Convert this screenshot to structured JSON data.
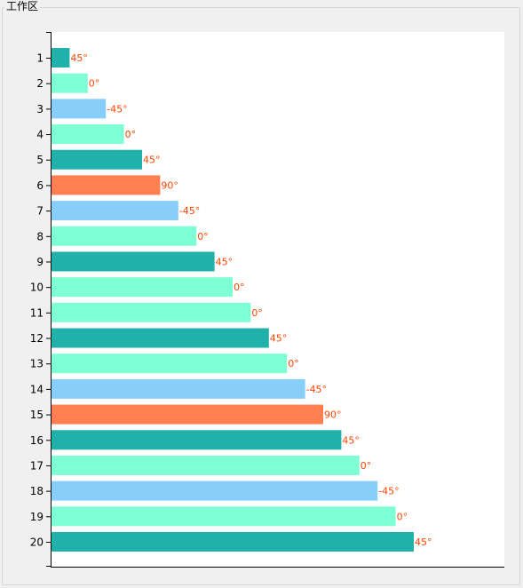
{
  "window": {
    "group_title": "工作区"
  },
  "colors": {
    "45": "#20b2aa",
    "0": "#7fffd4",
    "-45": "#87cefa",
    "90": "#ff7f50",
    "label": "#ff4500"
  },
  "chart_data": {
    "type": "bar",
    "orientation": "horizontal",
    "title": "",
    "xlabel": "",
    "ylabel": "",
    "categories": [
      "1",
      "2",
      "3",
      "4",
      "5",
      "6",
      "7",
      "8",
      "9",
      "10",
      "11",
      "12",
      "13",
      "14",
      "15",
      "16",
      "17",
      "18",
      "19",
      "20"
    ],
    "values": [
      1,
      2,
      3,
      4,
      5,
      6,
      7,
      8,
      9,
      10,
      11,
      12,
      13,
      14,
      15,
      16,
      17,
      18,
      19,
      20
    ],
    "labels": [
      "45°",
      "0°",
      "-45°",
      "0°",
      "45°",
      "90°",
      "-45°",
      "0°",
      "45°",
      "0°",
      "0°",
      "45°",
      "0°",
      "-45°",
      "90°",
      "45°",
      "0°",
      "-45°",
      "0°",
      "45°"
    ],
    "angles": [
      45,
      0,
      -45,
      0,
      45,
      90,
      -45,
      0,
      45,
      0,
      0,
      45,
      0,
      -45,
      90,
      45,
      0,
      -45,
      0,
      45
    ],
    "xlim": [
      0,
      25
    ],
    "grid": false,
    "legend": "none"
  }
}
